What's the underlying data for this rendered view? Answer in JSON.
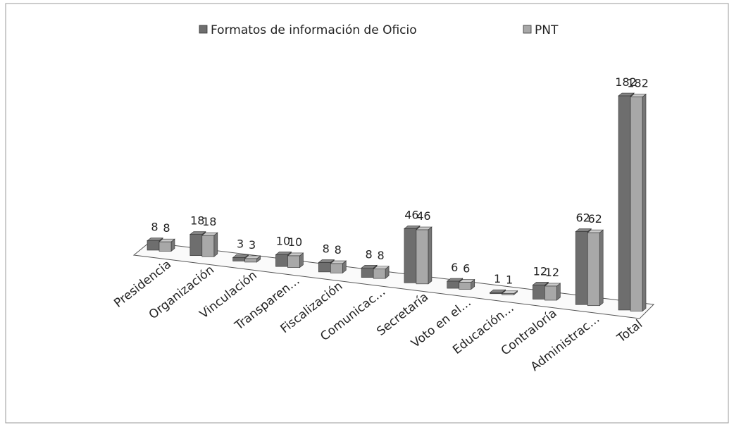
{
  "chart_data": {
    "type": "bar3d",
    "categories": [
      "Presidencia",
      "Organización",
      "Vinculación",
      "Transparen…",
      "Fiscalización",
      "Comunicac…",
      "Secretaría",
      "Voto en el…",
      "Educación…",
      "Contraloría",
      "Administrac…",
      "Total"
    ],
    "series": [
      {
        "name": "Formatos de información de Oficio",
        "color": "#6e6e6e",
        "values": [
          8,
          18,
          3,
          10,
          8,
          8,
          46,
          6,
          1,
          12,
          62,
          182
        ]
      },
      {
        "name": "PNT",
        "color": "#a8a8a8",
        "values": [
          8,
          18,
          3,
          10,
          8,
          8,
          46,
          6,
          1,
          12,
          62,
          182
        ]
      }
    ]
  }
}
